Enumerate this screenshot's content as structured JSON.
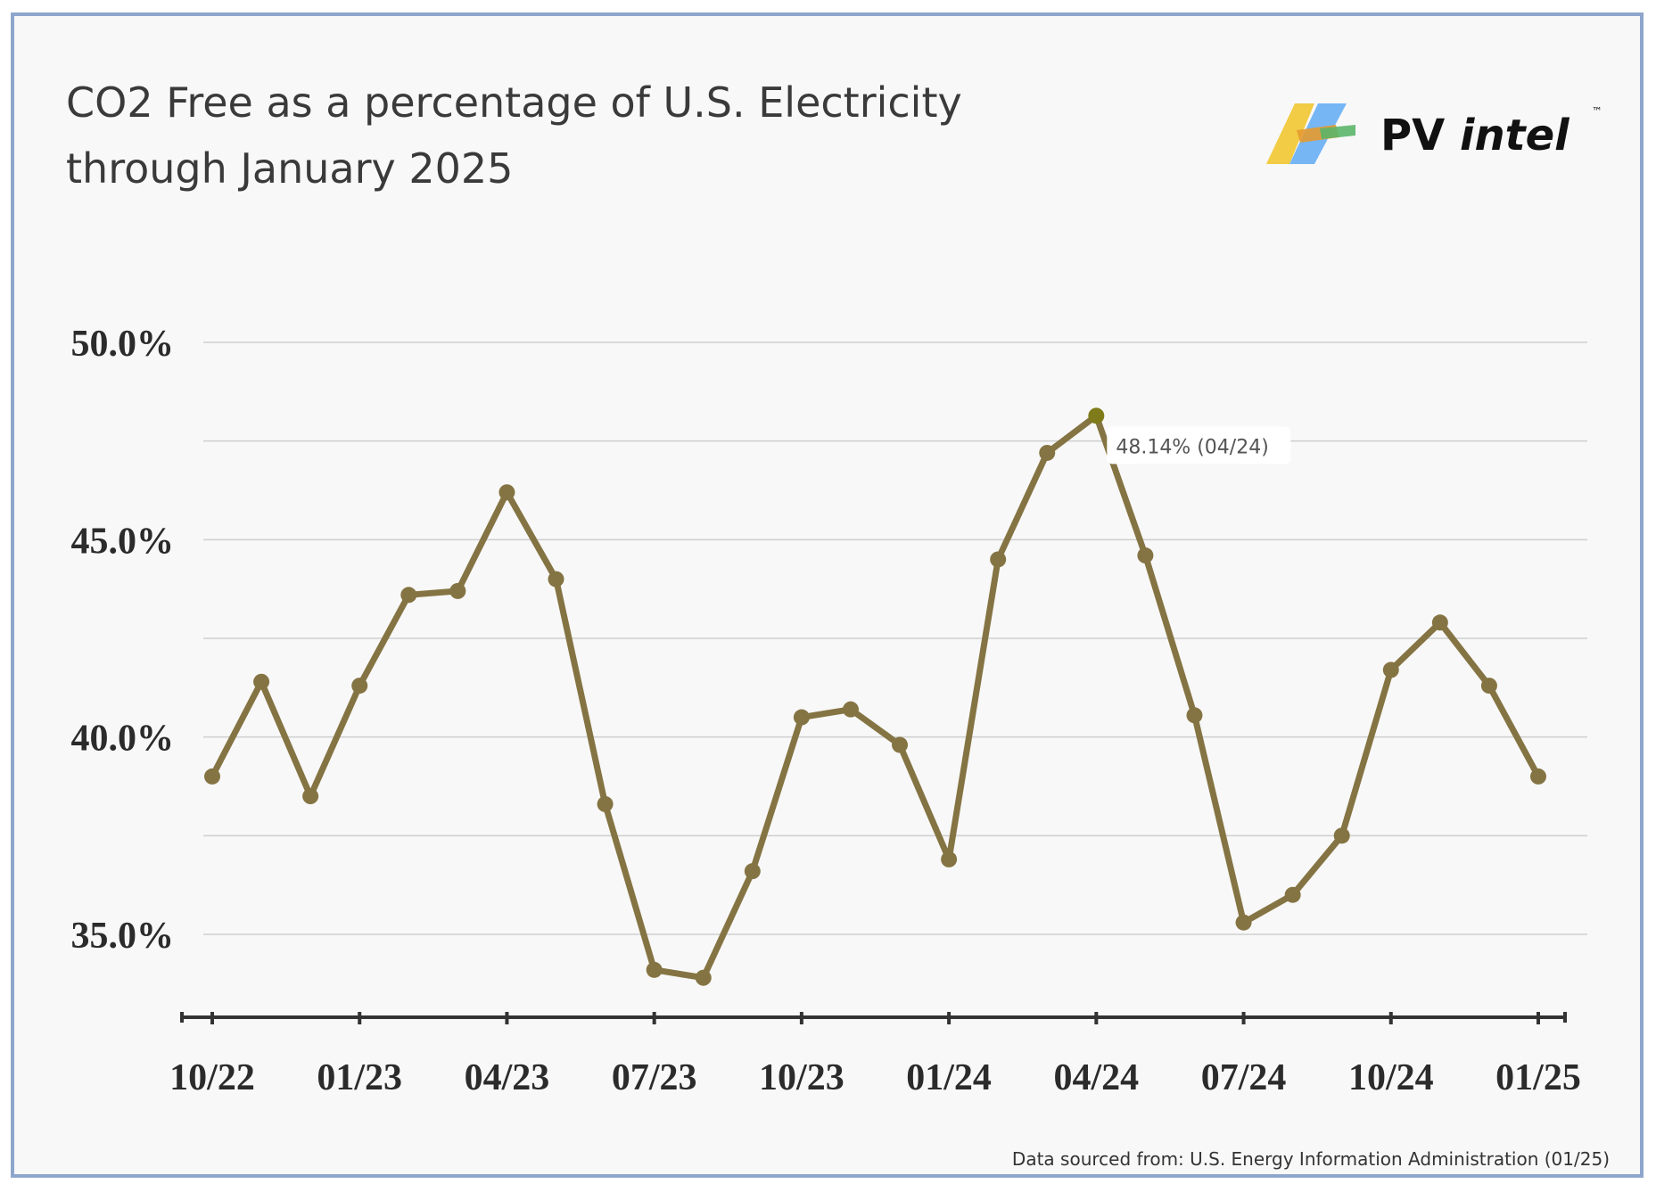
{
  "title": "CO2 Free as a percentage of U.S. Electricity through January 2025",
  "logo": {
    "name": "PV",
    "name_italic": "intel",
    "tm": "™"
  },
  "source": "Data sourced from: U.S. Energy Information Administration (01/25)",
  "colors": {
    "line": "#857443",
    "highlight": "#7f7a1a",
    "grid": "#cfcfcf",
    "axis": "#333333",
    "background": "#f8f8f8",
    "border": "#8fa6cc"
  },
  "chart_data": {
    "type": "line",
    "title": "CO2 Free as a percentage of U.S. Electricity through January 2025",
    "xlabel": "",
    "ylabel": "",
    "x": [
      "10/22",
      "11/22",
      "12/22",
      "01/23",
      "02/23",
      "03/23",
      "04/23",
      "05/23",
      "06/23",
      "07/23",
      "08/23",
      "09/23",
      "10/23",
      "11/23",
      "12/23",
      "01/24",
      "02/24",
      "03/24",
      "04/24",
      "05/24",
      "06/24",
      "07/24",
      "08/24",
      "09/24",
      "10/24",
      "11/24",
      "12/24",
      "01/25"
    ],
    "series": [
      {
        "values": [
          39.0,
          41.4,
          38.5,
          41.3,
          43.6,
          43.7,
          46.2,
          44.0,
          38.3,
          34.1,
          33.9,
          36.6,
          40.5,
          40.7,
          39.8,
          36.9,
          44.5,
          47.2,
          48.14,
          44.6,
          40.55,
          35.3,
          36.0,
          37.5,
          41.7,
          42.9,
          41.3,
          39.0
        ]
      }
    ],
    "ylim": [
      33.3,
      52.0
    ],
    "yticks": [
      35,
      40,
      45,
      50
    ],
    "ytick_labels": [
      "35.0%",
      "40.0%",
      "45.0%",
      "50.0%"
    ],
    "xtick_labels": [
      "10/22",
      "01/23",
      "04/23",
      "07/23",
      "10/23",
      "01/24",
      "04/24",
      "07/24",
      "10/24",
      "01/25"
    ],
    "highlight": {
      "index": 18,
      "label": "48.14% (04/24)"
    },
    "grid": true,
    "legend": "none"
  }
}
